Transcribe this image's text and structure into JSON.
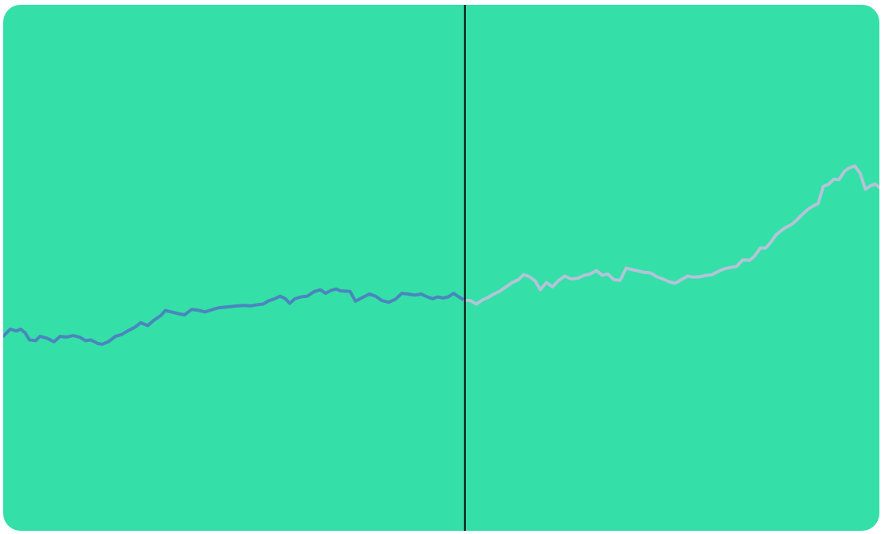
{
  "theme": {
    "background": "#34DFA8",
    "past_color": "#4A86BE",
    "future_color": "#B3C3D8",
    "divider_color": "#000000"
  },
  "chart_data": {
    "type": "line",
    "title": "",
    "xlabel": "",
    "ylabel": "",
    "grid": false,
    "legend": "none",
    "xlim": [
      0,
      1
    ],
    "ylim": [
      0,
      1
    ],
    "divider_x": 0.527,
    "series": [
      {
        "style": "past",
        "points": [
          [
            0.0,
            0.32
          ],
          [
            0.008,
            0.34
          ],
          [
            0.015,
            0.335
          ],
          [
            0.02,
            0.34
          ],
          [
            0.025,
            0.33
          ],
          [
            0.03,
            0.31
          ],
          [
            0.037,
            0.308
          ],
          [
            0.042,
            0.32
          ],
          [
            0.05,
            0.315
          ],
          [
            0.058,
            0.305
          ],
          [
            0.065,
            0.32
          ],
          [
            0.072,
            0.318
          ],
          [
            0.08,
            0.322
          ],
          [
            0.087,
            0.318
          ],
          [
            0.094,
            0.308
          ],
          [
            0.1,
            0.31
          ],
          [
            0.108,
            0.3
          ],
          [
            0.113,
            0.298
          ],
          [
            0.12,
            0.305
          ],
          [
            0.128,
            0.32
          ],
          [
            0.135,
            0.325
          ],
          [
            0.142,
            0.335
          ],
          [
            0.15,
            0.345
          ],
          [
            0.157,
            0.358
          ],
          [
            0.165,
            0.35
          ],
          [
            0.172,
            0.365
          ],
          [
            0.18,
            0.378
          ],
          [
            0.185,
            0.392
          ],
          [
            0.192,
            0.388
          ],
          [
            0.2,
            0.383
          ],
          [
            0.207,
            0.38
          ],
          [
            0.215,
            0.395
          ],
          [
            0.222,
            0.393
          ],
          [
            0.23,
            0.388
          ],
          [
            0.237,
            0.393
          ],
          [
            0.245,
            0.399
          ],
          [
            0.252,
            0.401
          ],
          [
            0.26,
            0.403
          ],
          [
            0.267,
            0.405
          ],
          [
            0.275,
            0.406
          ],
          [
            0.282,
            0.405
          ],
          [
            0.29,
            0.408
          ],
          [
            0.297,
            0.41
          ],
          [
            0.302,
            0.418
          ],
          [
            0.31,
            0.425
          ],
          [
            0.316,
            0.432
          ],
          [
            0.322,
            0.425
          ],
          [
            0.327,
            0.412
          ],
          [
            0.333,
            0.425
          ],
          [
            0.34,
            0.43
          ],
          [
            0.347,
            0.432
          ],
          [
            0.355,
            0.445
          ],
          [
            0.362,
            0.45
          ],
          [
            0.368,
            0.44
          ],
          [
            0.374,
            0.448
          ],
          [
            0.38,
            0.452
          ],
          [
            0.385,
            0.447
          ],
          [
            0.39,
            0.446
          ],
          [
            0.396,
            0.445
          ],
          [
            0.402,
            0.418
          ],
          [
            0.41,
            0.428
          ],
          [
            0.418,
            0.438
          ],
          [
            0.425,
            0.432
          ],
          [
            0.432,
            0.42
          ],
          [
            0.44,
            0.415
          ],
          [
            0.448,
            0.424
          ],
          [
            0.455,
            0.44
          ],
          [
            0.462,
            0.438
          ],
          [
            0.47,
            0.435
          ],
          [
            0.477,
            0.438
          ],
          [
            0.484,
            0.43
          ],
          [
            0.49,
            0.425
          ],
          [
            0.496,
            0.43
          ],
          [
            0.502,
            0.427
          ],
          [
            0.508,
            0.43
          ],
          [
            0.514,
            0.44
          ],
          [
            0.52,
            0.43
          ],
          [
            0.527,
            0.42
          ]
        ]
      },
      {
        "style": "future",
        "points": [
          [
            0.527,
            0.42
          ],
          [
            0.533,
            0.42
          ],
          [
            0.54,
            0.41
          ],
          [
            0.546,
            0.42
          ],
          [
            0.553,
            0.428
          ],
          [
            0.56,
            0.438
          ],
          [
            0.567,
            0.446
          ],
          [
            0.574,
            0.458
          ],
          [
            0.581,
            0.47
          ],
          [
            0.588,
            0.478
          ],
          [
            0.594,
            0.492
          ],
          [
            0.6,
            0.487
          ],
          [
            0.607,
            0.475
          ],
          [
            0.613,
            0.45
          ],
          [
            0.62,
            0.47
          ],
          [
            0.627,
            0.458
          ],
          [
            0.634,
            0.476
          ],
          [
            0.641,
            0.488
          ],
          [
            0.648,
            0.48
          ],
          [
            0.656,
            0.482
          ],
          [
            0.663,
            0.49
          ],
          [
            0.67,
            0.494
          ],
          [
            0.677,
            0.503
          ],
          [
            0.684,
            0.49
          ],
          [
            0.69,
            0.494
          ],
          [
            0.697,
            0.478
          ],
          [
            0.704,
            0.476
          ],
          [
            0.711,
            0.51
          ],
          [
            0.718,
            0.506
          ],
          [
            0.725,
            0.502
          ],
          [
            0.732,
            0.498
          ],
          [
            0.739,
            0.497
          ],
          [
            0.746,
            0.486
          ],
          [
            0.753,
            0.48
          ],
          [
            0.76,
            0.472
          ],
          [
            0.767,
            0.468
          ],
          [
            0.774,
            0.478
          ],
          [
            0.781,
            0.488
          ],
          [
            0.788,
            0.485
          ],
          [
            0.795,
            0.486
          ],
          [
            0.802,
            0.49
          ],
          [
            0.809,
            0.492
          ],
          [
            0.816,
            0.501
          ],
          [
            0.823,
            0.508
          ],
          [
            0.83,
            0.512
          ],
          [
            0.837,
            0.515
          ],
          [
            0.844,
            0.533
          ],
          [
            0.852,
            0.532
          ],
          [
            0.858,
            0.545
          ],
          [
            0.864,
            0.566
          ],
          [
            0.87,
            0.566
          ],
          [
            0.876,
            0.582
          ],
          [
            0.882,
            0.603
          ],
          [
            0.888,
            0.615
          ],
          [
            0.894,
            0.625
          ],
          [
            0.9,
            0.632
          ],
          [
            0.906,
            0.645
          ],
          [
            0.912,
            0.66
          ],
          [
            0.918,
            0.673
          ],
          [
            0.924,
            0.683
          ],
          [
            0.93,
            0.69
          ],
          [
            0.936,
            0.738
          ],
          [
            0.942,
            0.744
          ],
          [
            0.948,
            0.758
          ],
          [
            0.954,
            0.757
          ],
          [
            0.96,
            0.78
          ],
          [
            0.966,
            0.79
          ],
          [
            0.972,
            0.795
          ],
          [
            0.978,
            0.775
          ],
          [
            0.984,
            0.73
          ],
          [
            0.99,
            0.74
          ],
          [
            0.995,
            0.745
          ],
          [
            1.0,
            0.735
          ]
        ]
      }
    ]
  }
}
